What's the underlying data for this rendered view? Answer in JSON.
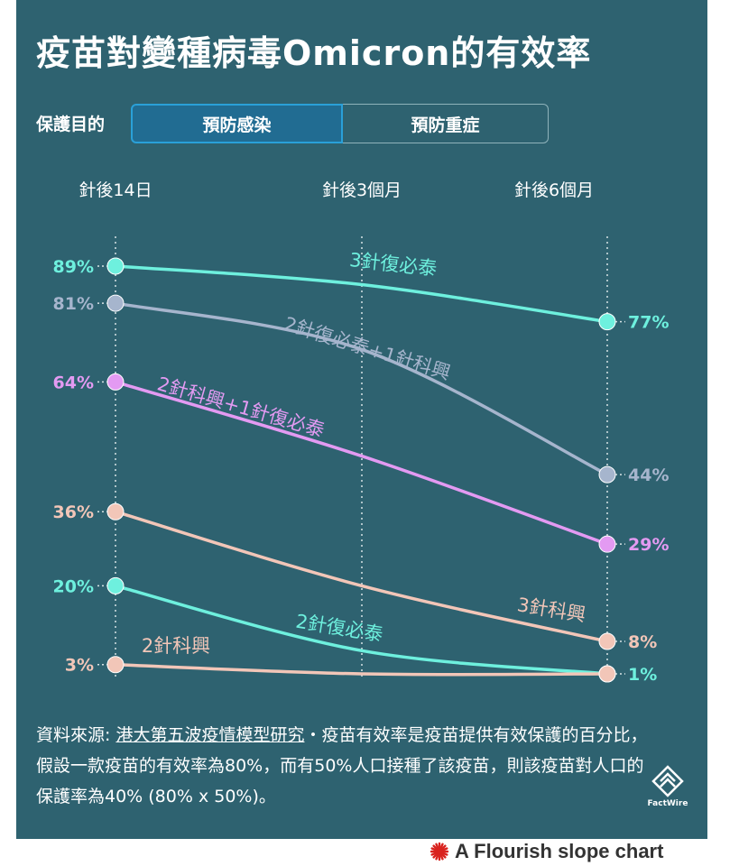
{
  "title": "疫苗對變種病毒Omicron的有效率",
  "control": {
    "label": "保護目的",
    "options": [
      "預防感染",
      "預防重症"
    ],
    "selected": "預防感染"
  },
  "columns": [
    "針後14日",
    "針後3個月",
    "針後6個月"
  ],
  "chart_data": {
    "type": "line",
    "subtype": "slope",
    "title": "疫苗對變種病毒Omicron的有效率",
    "categories": [
      "針後14日",
      "針後3個月",
      "針後6個月"
    ],
    "unit": "%",
    "series": [
      {
        "name": "3針復必泰",
        "values": [
          89,
          85,
          77
        ],
        "color": "#6ef0de"
      },
      {
        "name": "2針復必泰+1針科興",
        "values": [
          81,
          71,
          44
        ],
        "color": "#a6b5cd"
      },
      {
        "name": "2針科興+1針復必泰",
        "values": [
          64,
          48,
          29
        ],
        "color": "#e39af2"
      },
      {
        "name": "3針科興",
        "values": [
          36,
          20,
          8
        ],
        "color": "#f2c6b8"
      },
      {
        "name": "2針復必泰",
        "values": [
          20,
          6,
          1
        ],
        "color": "#6ef0de"
      },
      {
        "name": "2針科興",
        "values": [
          3,
          1,
          1
        ],
        "color": "#f2c6b8"
      }
    ],
    "start_labels": [
      "89%",
      "81%",
      "64%",
      "36%",
      "20%",
      "3%"
    ],
    "end_labels": [
      "77%",
      "44%",
      "29%",
      "8%",
      "1%"
    ]
  },
  "source": {
    "prefix": "資料來源: ",
    "link": "港大第五波疫情模型研究",
    "text": "・疫苗有效率是疫苗提供有效保護的百分比，假設一款疫苗的有效率為80%，而有50%人口接種了該疫苗，則該疫苗對人口的保護率為40% (80% x 50%)。"
  },
  "logo_text": "FactWire",
  "footer": "A Flourish slope chart",
  "colors": {
    "panel": "#2e6270",
    "selected_tab": "#216c92",
    "selected_border": "#2aa0d8"
  }
}
